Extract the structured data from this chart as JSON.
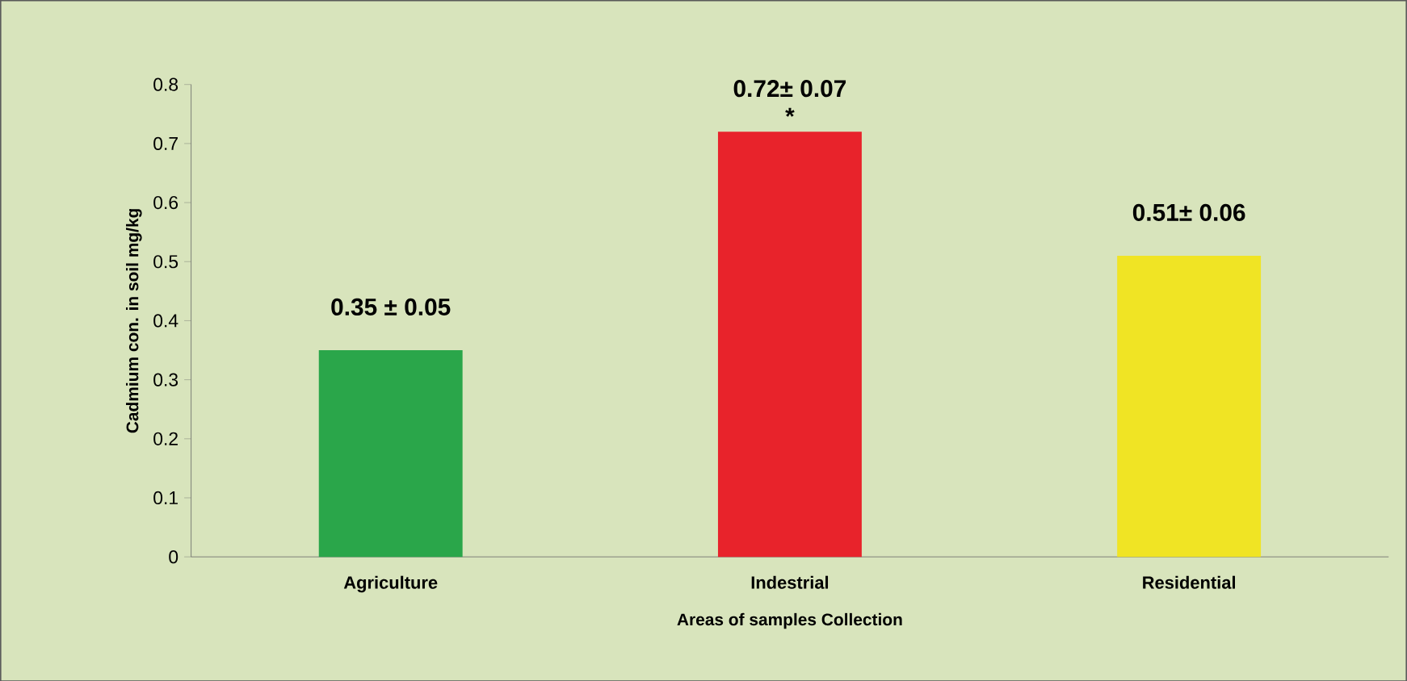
{
  "chart_data": {
    "type": "bar",
    "categories": [
      "Agriculture",
      "Indestrial",
      "Residential"
    ],
    "values": [
      0.35,
      0.72,
      0.51
    ],
    "colors": [
      "#2aa64a",
      "#e8232b",
      "#f0e424"
    ],
    "value_labels": [
      "0.35  ± 0.05",
      "0.72± 0.07",
      "0.51± 0.06"
    ],
    "annotations": [
      {
        "text": "*",
        "x": "Indestrial",
        "y": 0.72
      }
    ],
    "xlabel": "Areas of samples Collection",
    "ylabel": "Cadmium con. in soil mg/kg",
    "ylim": [
      0,
      0.8
    ],
    "yticks": [
      0,
      0.1,
      0.2,
      0.3,
      0.4,
      0.5,
      0.6,
      0.7,
      0.8
    ]
  }
}
